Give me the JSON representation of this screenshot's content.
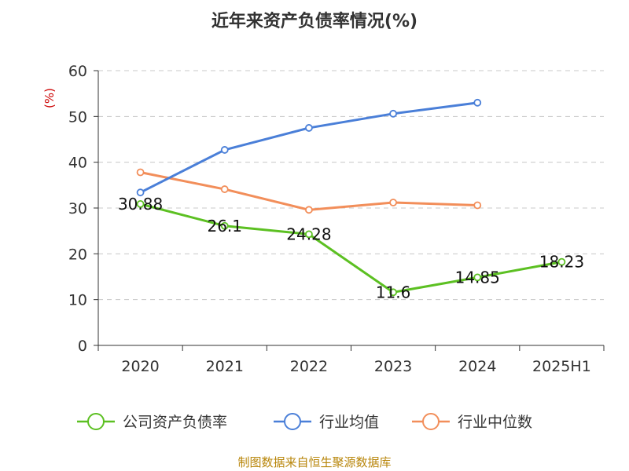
{
  "chart_data": {
    "type": "line",
    "title": "近年来资产负债率情况(%)",
    "ylabel": "(%)",
    "categories": [
      "2020",
      "2021",
      "2022",
      "2023",
      "2024",
      "2025H1"
    ],
    "ylim": [
      0,
      60
    ],
    "yticks": [
      0,
      10,
      20,
      30,
      40,
      50,
      60
    ],
    "grid": true,
    "legend_position": "bottom",
    "series": [
      {
        "name": "公司资产负债率",
        "color": "#5cc022",
        "values": [
          30.88,
          26.1,
          24.28,
          11.6,
          14.85,
          18.23
        ],
        "labels": [
          "30.88",
          "26.1",
          "24.28",
          "11.6",
          "14.85",
          "18.23"
        ]
      },
      {
        "name": "行业均值",
        "color": "#4a7fd8",
        "values": [
          33.4,
          42.7,
          47.5,
          50.6,
          53.0,
          null
        ]
      },
      {
        "name": "行业中位数",
        "color": "#f28e5a",
        "values": [
          37.8,
          34.1,
          29.6,
          31.2,
          30.6,
          null
        ]
      }
    ]
  },
  "source": "制图数据来自恒生聚源数据库"
}
